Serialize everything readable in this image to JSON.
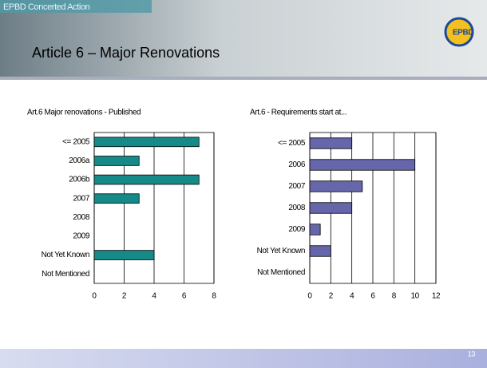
{
  "slide": {
    "header": "EPBD Concerted Action",
    "title": "Article 6 – Major Renovations",
    "logo": "EPBD",
    "page_number": "13"
  },
  "chart_data": [
    {
      "type": "barh",
      "title": "Art.6 Major renovations - Published",
      "categories": [
        "<= 2005",
        "2006a",
        "2006b",
        "2007",
        "2008",
        "2009",
        "Not Yet Known",
        "Not Mentioned"
      ],
      "values": [
        7,
        3,
        7,
        3,
        0,
        0,
        4,
        0
      ],
      "color": "#168a88",
      "xlim": [
        0,
        8
      ],
      "xticks": [
        0,
        2,
        4,
        6,
        8
      ],
      "grid": true
    },
    {
      "type": "barh",
      "title": "Art.6 - Requirements start at...",
      "categories": [
        "<= 2005",
        "2006",
        "2007",
        "2008",
        "2009",
        "Not Yet Known",
        "Not Mentioned"
      ],
      "values": [
        4,
        10,
        5,
        4,
        1,
        2,
        0
      ],
      "color": "#6666aa",
      "xlim": [
        0,
        12
      ],
      "xticks": [
        0,
        2,
        4,
        6,
        8,
        10,
        12
      ],
      "grid": true
    }
  ]
}
